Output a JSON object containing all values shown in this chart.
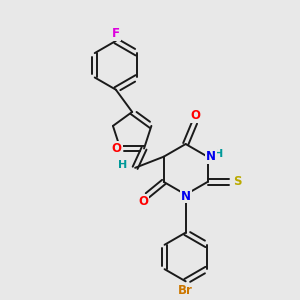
{
  "background_color": "#e8e8e8",
  "bond_color": "#1a1a1a",
  "atom_colors": {
    "F": "#dd00dd",
    "O": "#ff0000",
    "N": "#0000ee",
    "S": "#bbaa00",
    "Br": "#cc7700",
    "H_teal": "#009999",
    "C": "#1a1a1a"
  },
  "font_size": 8.5,
  "lw": 1.4
}
